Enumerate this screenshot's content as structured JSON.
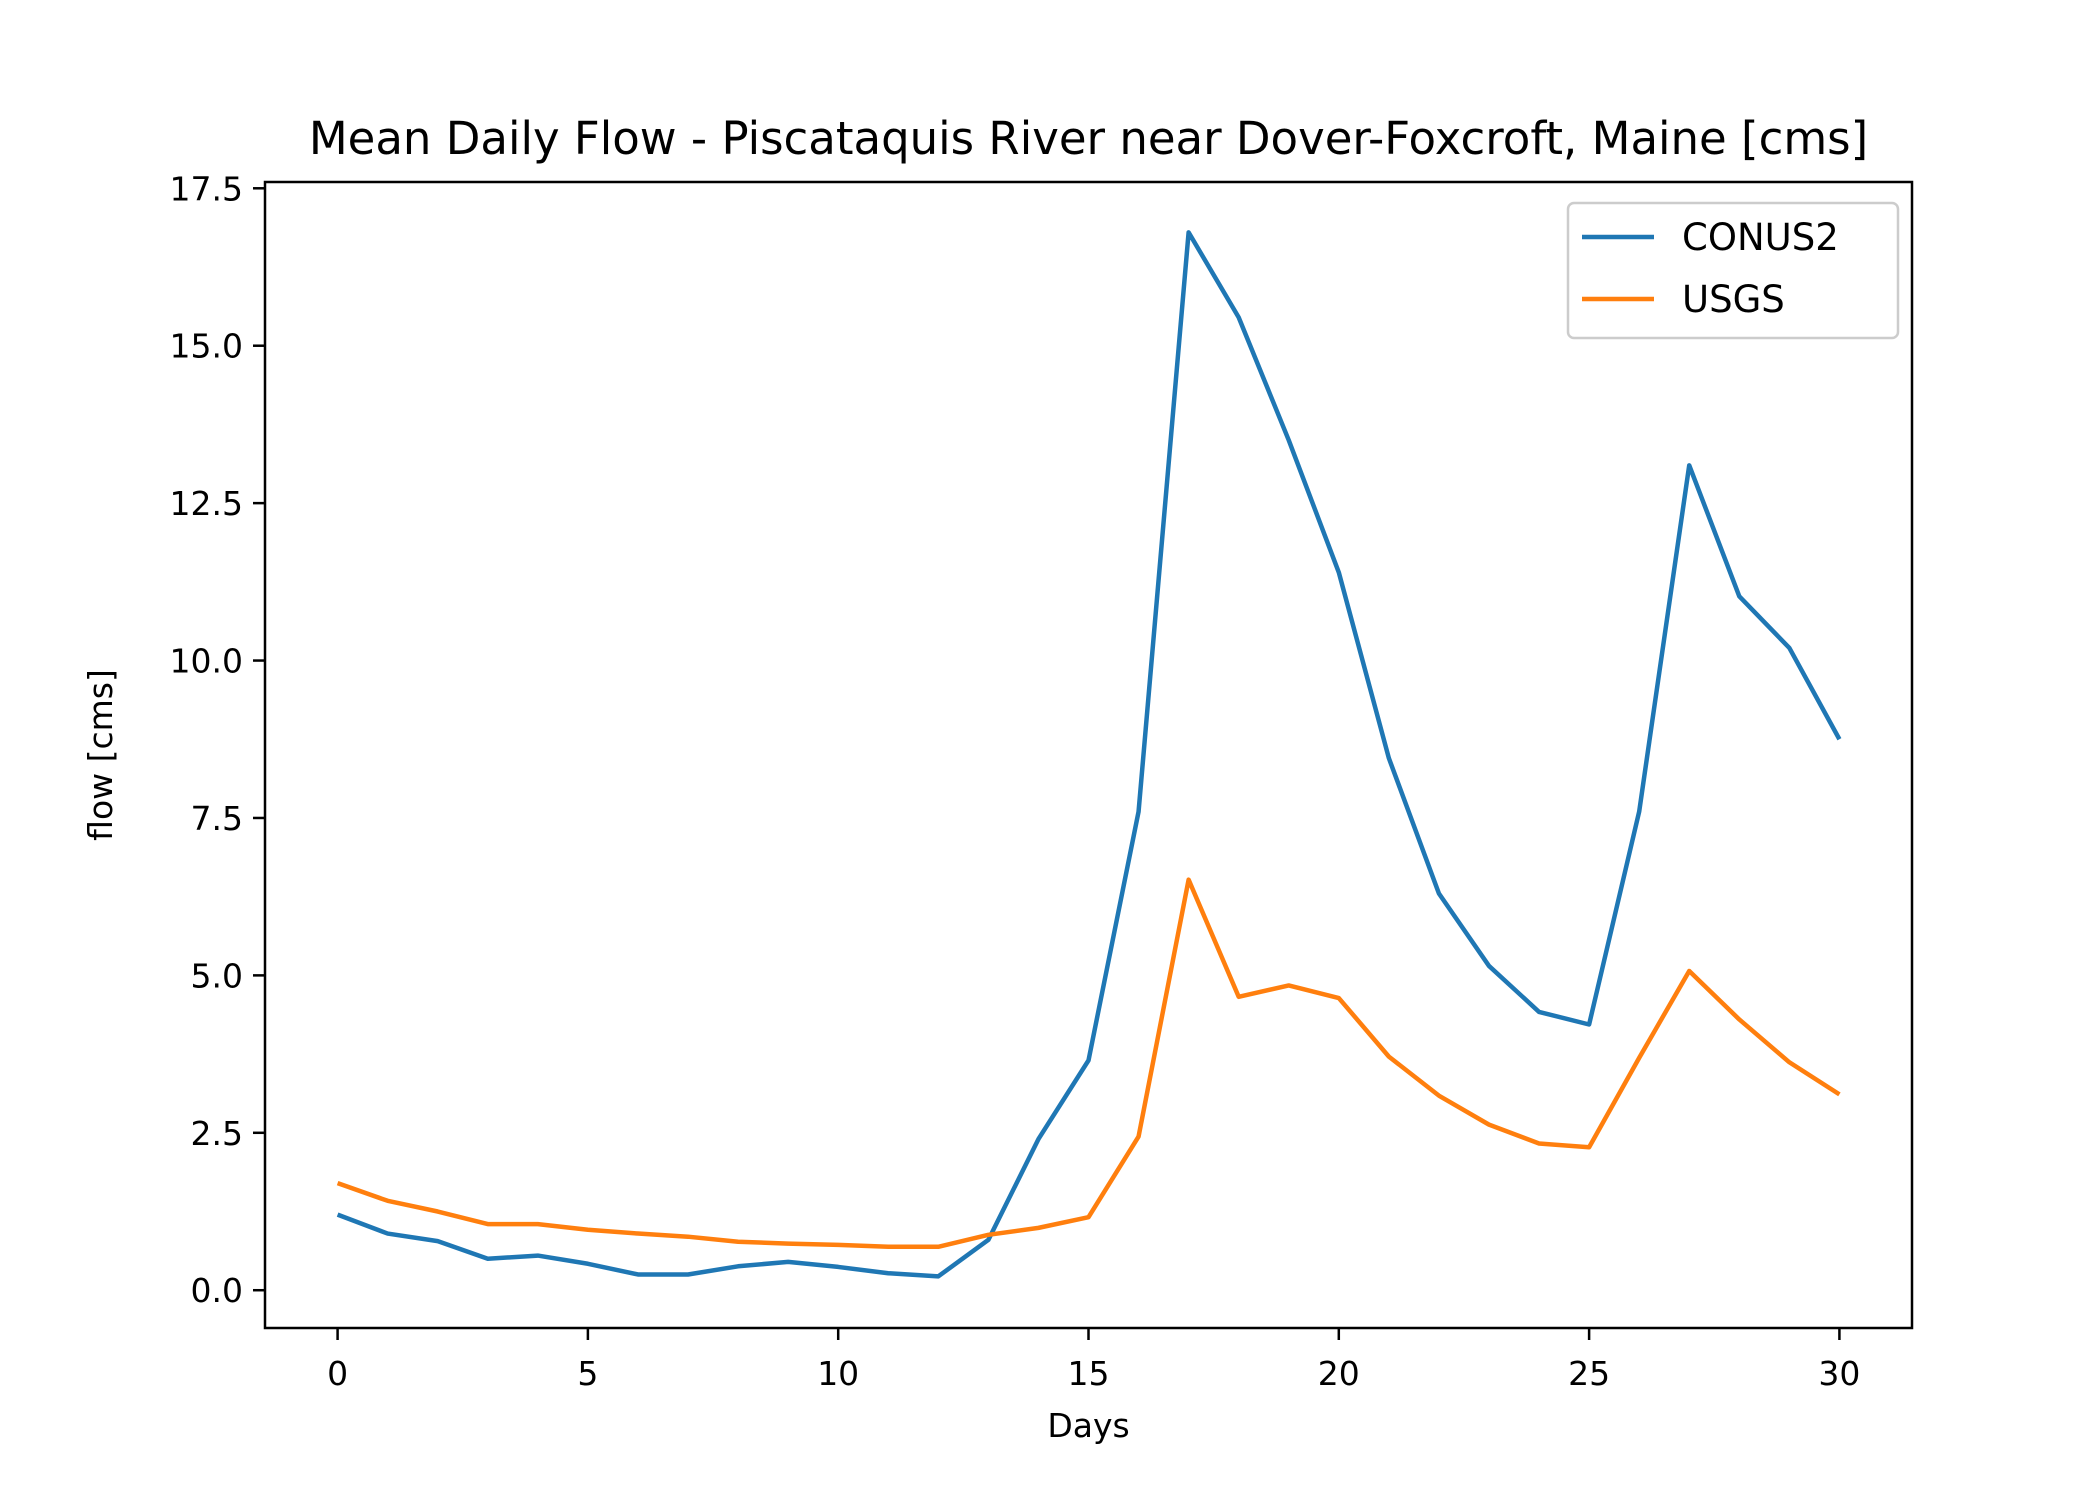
{
  "chart_data": {
    "type": "line",
    "title": "Mean Daily Flow - Piscataquis River near Dover-Foxcroft, Maine [cms]",
    "xlabel": "Days",
    "ylabel": "flow [cms]",
    "xlim": [
      -1.45,
      31.45
    ],
    "ylim": [
      -0.6,
      17.6
    ],
    "xticks": [
      0,
      5,
      10,
      15,
      20,
      25,
      30
    ],
    "yticks": [
      0.0,
      2.5,
      5.0,
      7.5,
      10.0,
      12.5,
      15.0,
      17.5
    ],
    "ytick_labels": [
      "0.0",
      "2.5",
      "5.0",
      "7.5",
      "10.0",
      "12.5",
      "15.0",
      "17.5"
    ],
    "grid": false,
    "legend": "top-right",
    "x": [
      0,
      1,
      2,
      3,
      4,
      5,
      6,
      7,
      8,
      9,
      10,
      11,
      12,
      13,
      14,
      15,
      16,
      17,
      18,
      19,
      20,
      21,
      22,
      23,
      24,
      25,
      26,
      27,
      28,
      29,
      30
    ],
    "series": [
      {
        "name": "CONUS2",
        "color": "#1f77b4",
        "values": [
          1.2,
          0.9,
          0.78,
          0.5,
          0.55,
          0.42,
          0.25,
          0.25,
          0.38,
          0.45,
          0.37,
          0.27,
          0.22,
          0.8,
          2.4,
          3.65,
          7.6,
          16.8,
          15.45,
          13.5,
          11.4,
          8.45,
          6.3,
          5.15,
          4.42,
          4.22,
          7.6,
          13.1,
          11.02,
          10.2,
          8.75
        ]
      },
      {
        "name": "USGS",
        "color": "#ff7f0e",
        "values": [
          1.7,
          1.42,
          1.25,
          1.05,
          1.05,
          0.96,
          0.9,
          0.85,
          0.77,
          0.74,
          0.72,
          0.69,
          0.69,
          0.88,
          0.99,
          1.16,
          2.44,
          6.52,
          4.66,
          4.84,
          4.64,
          3.71,
          3.09,
          2.63,
          2.33,
          2.27,
          3.69,
          5.07,
          4.3,
          3.62,
          3.11
        ]
      }
    ]
  }
}
